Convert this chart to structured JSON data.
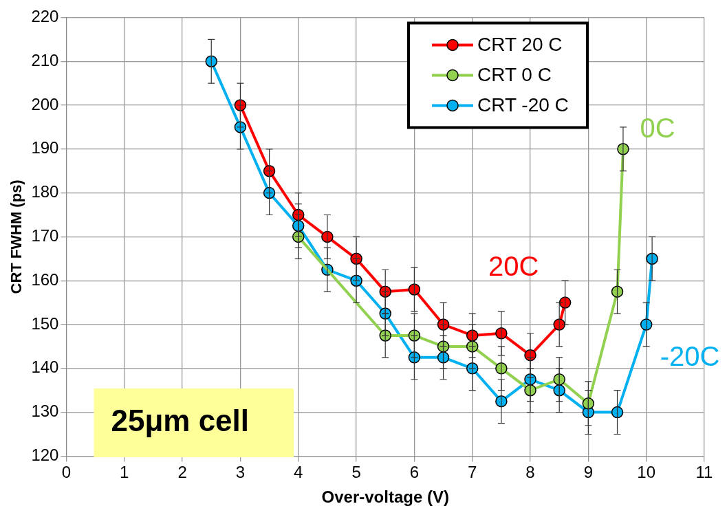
{
  "chart_data": {
    "type": "line",
    "xlabel": "Over-voltage (V)",
    "ylabel": "CRT FWHM (ps)",
    "xlim": [
      0,
      11
    ],
    "xticks": [
      0,
      1,
      2,
      3,
      4,
      5,
      6,
      7,
      8,
      9,
      10,
      11
    ],
    "ylim": [
      120,
      220
    ],
    "yticks": [
      120,
      130,
      140,
      150,
      160,
      170,
      180,
      190,
      200,
      210,
      220
    ],
    "grid": true,
    "legend": "top right",
    "marker": "circle",
    "line_style": "solid",
    "series": [
      {
        "name": "CRT 20 C",
        "color": "#ff0000",
        "x": [
          3,
          3.5,
          4,
          4.5,
          5,
          5.5,
          6,
          6.5,
          7,
          7.5,
          8,
          8.5,
          8.6
        ],
        "values": [
          200,
          185,
          175,
          170,
          165,
          157.5,
          158,
          150,
          147.5,
          148,
          143,
          150,
          155
        ],
        "errors": [
          5,
          5,
          5,
          5,
          5,
          5,
          5,
          5,
          5,
          5,
          5,
          5,
          5
        ]
      },
      {
        "name": "CRT 0 C",
        "color": "#92d050",
        "x": [
          4,
          5.5,
          6,
          6.5,
          7,
          7.5,
          8,
          8.5,
          9,
          9.5,
          9.6
        ],
        "values": [
          170,
          147.5,
          147.5,
          145,
          145,
          140,
          135,
          137.5,
          132,
          157.5,
          190
        ],
        "errors": [
          5,
          5,
          5,
          5,
          5,
          5,
          5,
          5,
          5,
          5,
          5
        ]
      },
      {
        "name": "CRT -20 C",
        "color": "#00b0f0",
        "x": [
          2.5,
          3,
          3.5,
          4,
          4.5,
          5,
          5.5,
          6,
          6.5,
          7,
          7.5,
          8,
          8.5,
          9,
          9.5,
          10,
          10.1
        ],
        "values": [
          210,
          195,
          180,
          172.5,
          162.5,
          160,
          152.5,
          142.5,
          142.5,
          140,
          132.5,
          137.5,
          135,
          130,
          130,
          150,
          165
        ],
        "errors": [
          5,
          5,
          5,
          5,
          5,
          5,
          5,
          5,
          5,
          5,
          5,
          5,
          5,
          5,
          5,
          5,
          5
        ]
      }
    ],
    "annotations": [
      "20C",
      "0C",
      "-20C",
      "25μm cell"
    ]
  }
}
